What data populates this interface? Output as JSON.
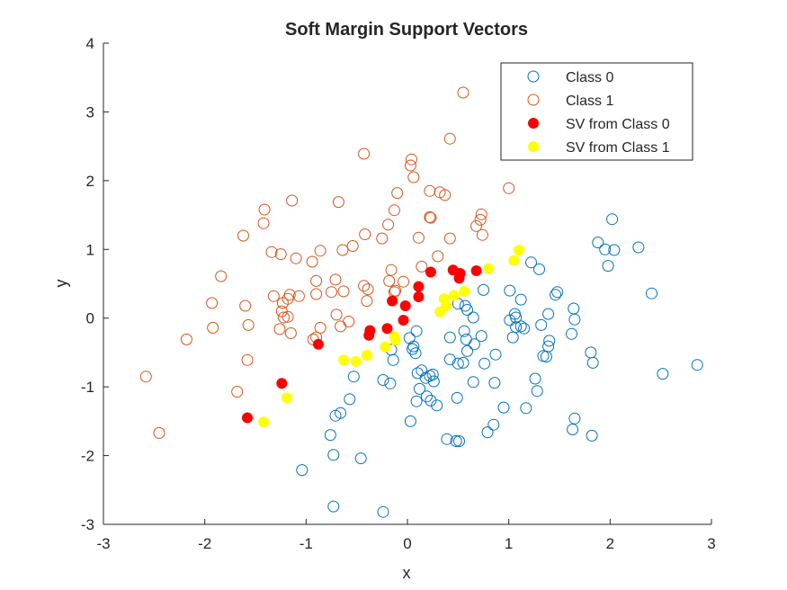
{
  "chart_data": {
    "type": "scatter",
    "title": "Soft Margin Support Vectors",
    "xlabel": "x",
    "ylabel": "y",
    "xlim": [
      -3,
      3
    ],
    "ylim": [
      -3,
      4
    ],
    "xticks": [
      -3,
      -2,
      -1,
      0,
      1,
      2,
      3
    ],
    "yticks": [
      -3,
      -2,
      -1,
      0,
      1,
      2,
      3,
      4
    ],
    "xtick_labels": [
      "-3",
      "-2",
      "-1",
      "0",
      "1",
      "2",
      "3"
    ],
    "ytick_labels": [
      "-3",
      "-2",
      "-1",
      "0",
      "1",
      "2",
      "3",
      "4"
    ],
    "grid": false,
    "legend_position": "top-right",
    "series": [
      {
        "name": "Class 0",
        "marker": "open-circle",
        "color": "#0072BD",
        "points": [
          [
            2.02,
            1.44
          ],
          [
            1.88,
            1.1
          ],
          [
            1.95,
            1.0
          ],
          [
            2.04,
            0.99
          ],
          [
            2.28,
            1.03
          ],
          [
            1.98,
            0.76
          ],
          [
            2.41,
            0.36
          ],
          [
            1.3,
            0.71
          ],
          [
            1.22,
            0.81
          ],
          [
            1.48,
            0.38
          ],
          [
            1.46,
            0.34
          ],
          [
            1.12,
            0.27
          ],
          [
            1.01,
            0.4
          ],
          [
            0.75,
            0.41
          ],
          [
            0.5,
            0.21
          ],
          [
            0.57,
            0.18
          ],
          [
            0.59,
            0.12
          ],
          [
            0.65,
            0.01
          ],
          [
            1.06,
            0.06
          ],
          [
            1.07,
            0.01
          ],
          [
            1.39,
            0.06
          ],
          [
            1.64,
            0.14
          ],
          [
            1.65,
            -0.02
          ],
          [
            1.01,
            -0.03
          ],
          [
            1.07,
            -0.13
          ],
          [
            1.12,
            -0.12
          ],
          [
            1.15,
            -0.15
          ],
          [
            1.32,
            -0.1
          ],
          [
            1.62,
            -0.23
          ],
          [
            1.4,
            -0.33
          ],
          [
            1.39,
            -0.41
          ],
          [
            1.04,
            -0.28
          ],
          [
            0.73,
            -0.26
          ],
          [
            0.66,
            -0.38
          ],
          [
            0.58,
            -0.31
          ],
          [
            0.56,
            -0.19
          ],
          [
            0.42,
            -0.28
          ],
          [
            0.59,
            -0.48
          ],
          [
            0.42,
            -0.6
          ],
          [
            0.5,
            -0.66
          ],
          [
            0.55,
            -0.65
          ],
          [
            1.34,
            -0.55
          ],
          [
            1.37,
            -0.56
          ],
          [
            1.26,
            -0.88
          ],
          [
            0.87,
            -0.53
          ],
          [
            0.76,
            -0.66
          ],
          [
            0.65,
            -0.93
          ],
          [
            0.86,
            -0.94
          ],
          [
            1.28,
            -1.06
          ],
          [
            1.81,
            -0.5
          ],
          [
            1.83,
            -0.65
          ],
          [
            2.52,
            -0.81
          ],
          [
            2.86,
            -0.68
          ],
          [
            1.65,
            -1.46
          ],
          [
            1.63,
            -1.62
          ],
          [
            1.82,
            -1.71
          ],
          [
            1.17,
            -1.31
          ],
          [
            0.95,
            -1.3
          ],
          [
            0.85,
            -1.55
          ],
          [
            0.79,
            -1.66
          ],
          [
            0.39,
            -1.76
          ],
          [
            0.48,
            -1.79
          ],
          [
            0.51,
            -1.79
          ],
          [
            0.49,
            -1.16
          ],
          [
            0.26,
            -0.92
          ],
          [
            0.22,
            -0.84
          ],
          [
            0.18,
            -0.87
          ],
          [
            0.14,
            -0.76
          ],
          [
            0.1,
            -0.8
          ],
          [
            0.25,
            -0.82
          ],
          [
            0.19,
            -1.14
          ],
          [
            0.12,
            -1.03
          ],
          [
            0.09,
            -1.21
          ],
          [
            0.23,
            -1.2
          ],
          [
            0.29,
            -1.27
          ],
          [
            0.03,
            -1.5
          ],
          [
            0.06,
            -0.41
          ],
          [
            0.05,
            -0.45
          ],
          [
            0.08,
            -0.51
          ],
          [
            0.02,
            -0.29
          ],
          [
            0.09,
            -0.19
          ],
          [
            -0.16,
            -0.46
          ],
          [
            -0.14,
            -0.61
          ],
          [
            -0.24,
            -0.9
          ],
          [
            -0.17,
            -0.95
          ],
          [
            -0.53,
            -0.85
          ],
          [
            -0.57,
            -1.18
          ],
          [
            -0.66,
            -1.38
          ],
          [
            -0.71,
            -1.42
          ],
          [
            -0.76,
            -1.7
          ],
          [
            -0.73,
            -1.99
          ],
          [
            -0.46,
            -2.04
          ],
          [
            -1.04,
            -2.21
          ],
          [
            -0.73,
            -2.74
          ],
          [
            -0.24,
            -2.82
          ]
        ]
      },
      {
        "name": "Class 1",
        "marker": "open-circle",
        "color": "#D95319",
        "points": [
          [
            0.55,
            3.28
          ],
          [
            0.42,
            2.61
          ],
          [
            -0.43,
            2.39
          ],
          [
            0.04,
            2.31
          ],
          [
            0.03,
            2.22
          ],
          [
            0.06,
            2.05
          ],
          [
            1.0,
            1.89
          ],
          [
            0.32,
            1.83
          ],
          [
            0.37,
            1.79
          ],
          [
            0.22,
            1.85
          ],
          [
            -0.1,
            1.82
          ],
          [
            -0.68,
            1.69
          ],
          [
            -1.14,
            1.71
          ],
          [
            -1.41,
            1.58
          ],
          [
            -1.42,
            1.38
          ],
          [
            -1.62,
            1.2
          ],
          [
            -0.13,
            1.57
          ],
          [
            -0.19,
            1.36
          ],
          [
            0.23,
            1.46
          ],
          [
            0.22,
            1.47
          ],
          [
            0.73,
            1.51
          ],
          [
            0.72,
            1.43
          ],
          [
            0.68,
            1.34
          ],
          [
            0.74,
            1.21
          ],
          [
            0.42,
            1.16
          ],
          [
            0.11,
            1.17
          ],
          [
            -0.42,
            1.22
          ],
          [
            -0.25,
            1.16
          ],
          [
            -0.54,
            1.05
          ],
          [
            -0.64,
            0.99
          ],
          [
            -0.86,
            0.98
          ],
          [
            -0.94,
            0.82
          ],
          [
            -1.1,
            0.87
          ],
          [
            -1.34,
            0.96
          ],
          [
            -1.25,
            0.93
          ],
          [
            -1.84,
            0.61
          ],
          [
            -1.93,
            0.22
          ],
          [
            -1.6,
            0.18
          ],
          [
            -1.57,
            -0.1
          ],
          [
            -1.92,
            -0.14
          ],
          [
            -2.18,
            -0.31
          ],
          [
            -1.58,
            -0.61
          ],
          [
            -2.58,
            -0.85
          ],
          [
            -2.45,
            -1.67
          ],
          [
            -1.68,
            -1.07
          ],
          [
            -0.9,
            0.54
          ],
          [
            -0.71,
            0.56
          ],
          [
            -0.75,
            0.38
          ],
          [
            -0.9,
            0.35
          ],
          [
            -1.07,
            0.32
          ],
          [
            -1.16,
            0.34
          ],
          [
            -1.18,
            0.28
          ],
          [
            -1.23,
            0.22
          ],
          [
            -1.32,
            0.32
          ],
          [
            -1.24,
            0.1
          ],
          [
            -1.22,
            0.01
          ],
          [
            -1.18,
            0.02
          ],
          [
            -1.15,
            -0.22
          ],
          [
            -1.26,
            -0.16
          ],
          [
            -0.63,
            0.39
          ],
          [
            -0.43,
            0.47
          ],
          [
            -0.39,
            0.42
          ],
          [
            -0.16,
            0.7
          ],
          [
            -0.18,
            0.54
          ],
          [
            -0.04,
            0.53
          ],
          [
            -0.12,
            0.4
          ],
          [
            -0.13,
            0.38
          ],
          [
            0.14,
            0.75
          ],
          [
            0.3,
            0.9
          ],
          [
            -0.4,
            0.25
          ],
          [
            -0.7,
            0.05
          ],
          [
            -0.66,
            -0.12
          ],
          [
            -0.58,
            -0.05
          ],
          [
            -0.86,
            -0.14
          ],
          [
            -0.9,
            -0.28
          ],
          [
            -0.93,
            -0.31
          ]
        ]
      },
      {
        "name": "SV from Class 0",
        "marker": "filled-circle",
        "color": "#FF0000",
        "points": [
          [
            0.23,
            0.67
          ],
          [
            0.45,
            0.7
          ],
          [
            0.52,
            0.65
          ],
          [
            0.51,
            0.58
          ],
          [
            0.68,
            0.69
          ],
          [
            0.11,
            0.46
          ],
          [
            0.11,
            0.31
          ],
          [
            -0.15,
            0.25
          ],
          [
            -0.02,
            0.18
          ],
          [
            -0.04,
            -0.03
          ],
          [
            -0.2,
            -0.15
          ],
          [
            -0.37,
            -0.18
          ],
          [
            -0.38,
            -0.25
          ],
          [
            -0.88,
            -0.38
          ],
          [
            -1.24,
            -0.95
          ],
          [
            -1.58,
            -1.45
          ]
        ]
      },
      {
        "name": "SV from Class 1",
        "marker": "filled-circle",
        "color": "#FFFF00",
        "points": [
          [
            1.1,
            0.99
          ],
          [
            1.05,
            0.84
          ],
          [
            0.8,
            0.72
          ],
          [
            0.56,
            0.39
          ],
          [
            0.46,
            0.33
          ],
          [
            0.36,
            0.28
          ],
          [
            0.38,
            0.18
          ],
          [
            0.32,
            0.09
          ],
          [
            -0.13,
            -0.27
          ],
          [
            -0.12,
            -0.32
          ],
          [
            -0.22,
            -0.42
          ],
          [
            -0.4,
            -0.54
          ],
          [
            -0.51,
            -0.63
          ],
          [
            -0.63,
            -0.61
          ],
          [
            -1.19,
            -1.16
          ],
          [
            -1.42,
            -1.51
          ]
        ]
      }
    ]
  }
}
